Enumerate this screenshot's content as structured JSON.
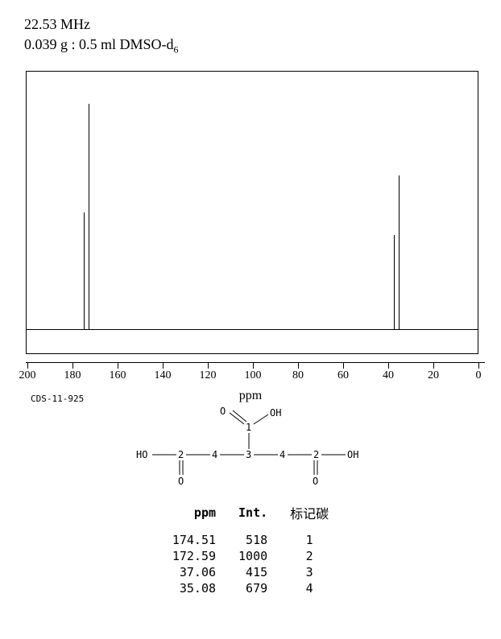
{
  "header": {
    "frequency": "22.53 MHz",
    "sample": "0.039 g : 0.5 ml DMSO-d",
    "sample_sub": "6"
  },
  "spectrum": {
    "type": "line",
    "background_color": "#ffffff",
    "border_color": "#000000",
    "line_color": "#000000",
    "line_width": 1,
    "xlim": [
      200,
      0
    ],
    "ylim": [
      0,
      1100
    ],
    "baseline_y": 30,
    "peaks": [
      {
        "ppm": 174.51,
        "intensity": 518
      },
      {
        "ppm": 172.59,
        "intensity": 1000
      },
      {
        "ppm": 37.06,
        "intensity": 415
      },
      {
        "ppm": 35.08,
        "intensity": 679
      }
    ],
    "xticks": [
      200,
      180,
      160,
      140,
      120,
      100,
      80,
      60,
      40,
      20,
      0
    ],
    "xlabel": "ppm",
    "ref_code": "CDS-11-925",
    "tick_fontsize": 14,
    "label_fontsize": 16
  },
  "structure": {
    "labels": {
      "O_dbl": "O",
      "OH": "OH",
      "HO": "HO",
      "c1": "1",
      "c2": "2",
      "c3": "3",
      "c4": "4"
    },
    "stroke": "#000000",
    "font": "monospace",
    "fontsize": 12
  },
  "table": {
    "headers": [
      "ppm",
      "Int.",
      "标记碳"
    ],
    "rows": [
      [
        "174.51",
        "518",
        "1"
      ],
      [
        "172.59",
        "1000",
        "2"
      ],
      [
        "37.06",
        "415",
        "3"
      ],
      [
        "35.08",
        "679",
        "4"
      ]
    ]
  }
}
